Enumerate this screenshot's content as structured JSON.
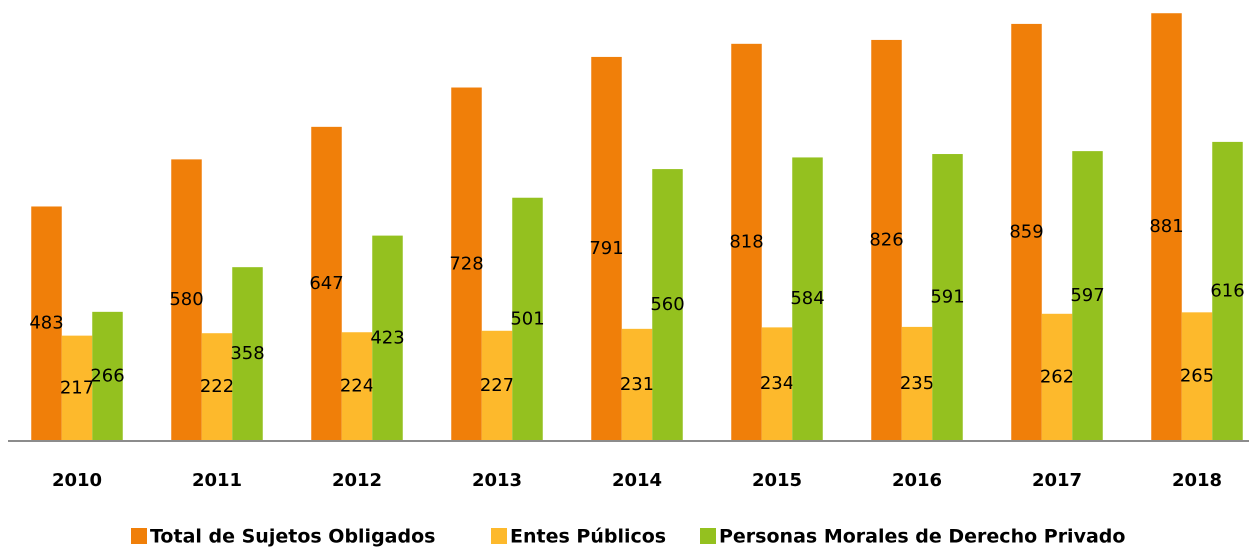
{
  "chart_data": {
    "type": "bar",
    "categories": [
      "2010",
      "2011",
      "2012",
      "2013",
      "2014",
      "2015",
      "2016",
      "2017",
      "2018"
    ],
    "series": [
      {
        "name": "Total de Sujetos Obligados",
        "color": "#f07f09",
        "values": [
          483,
          580,
          647,
          728,
          791,
          818,
          826,
          859,
          881
        ]
      },
      {
        "name": "Entes Públicos",
        "color": "#fdb92c",
        "values": [
          217,
          222,
          224,
          227,
          231,
          234,
          235,
          262,
          265
        ]
      },
      {
        "name": "Personas Morales de Derecho Privado",
        "color": "#94c11f",
        "values": [
          266,
          358,
          423,
          501,
          560,
          584,
          591,
          597,
          616
        ]
      }
    ],
    "ylim": [
      0,
      900
    ],
    "grid": false,
    "legend": "bottom"
  }
}
